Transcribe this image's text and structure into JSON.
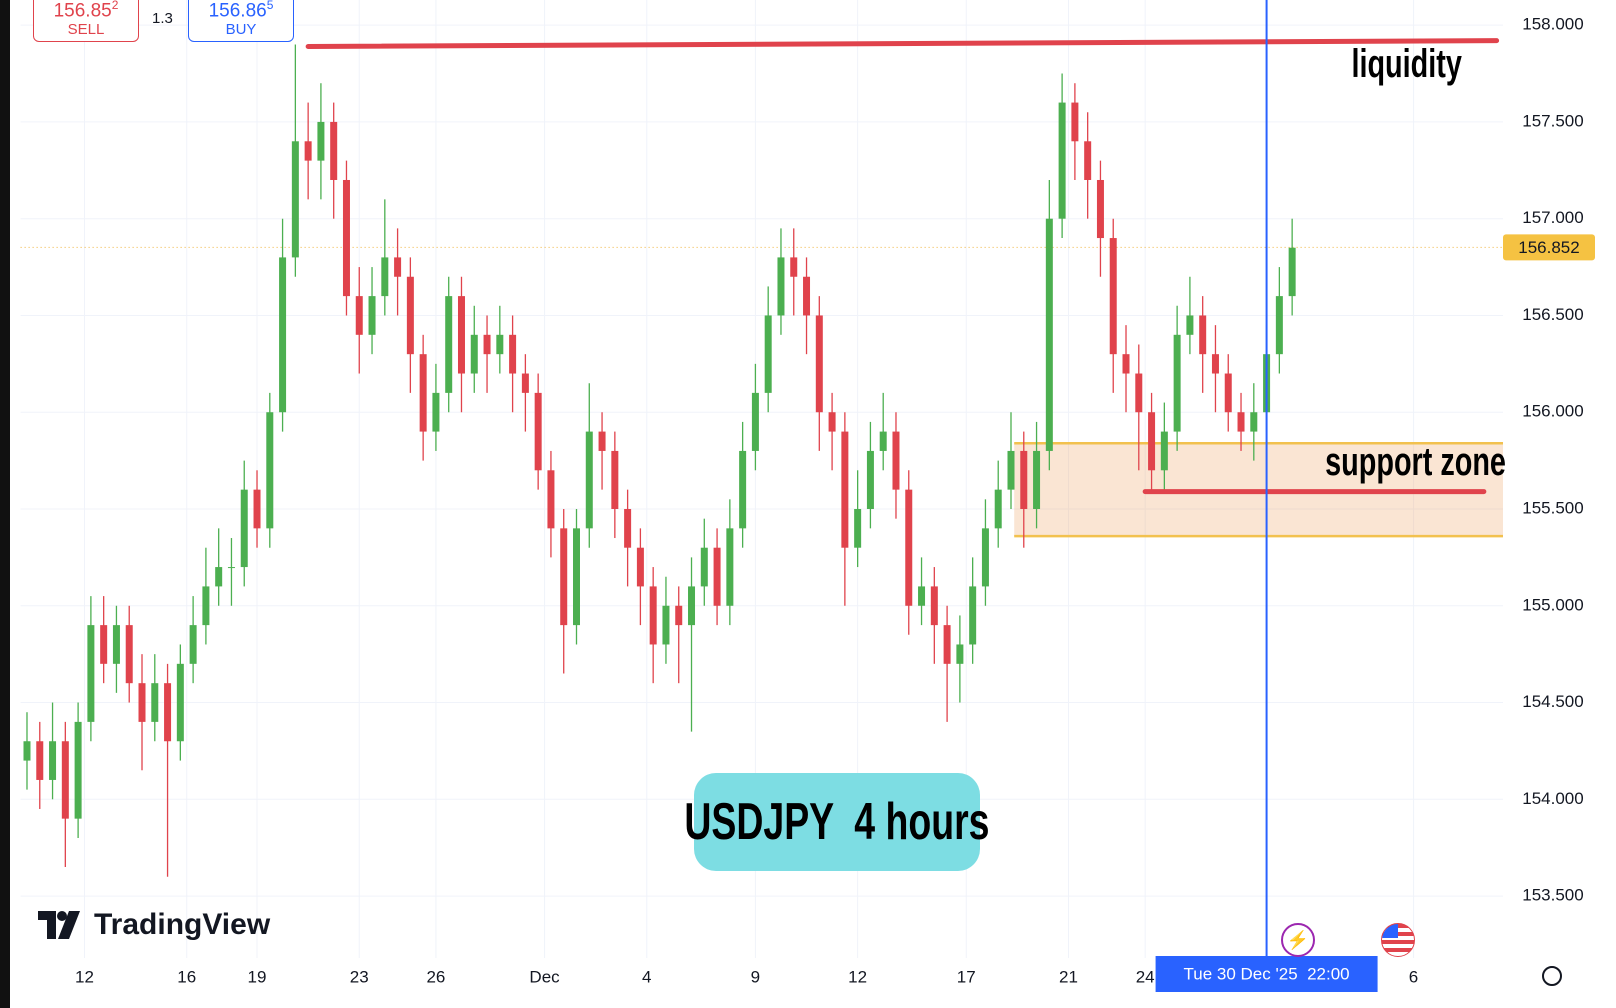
{
  "trade_panel": {
    "sell_price": "156.85",
    "sell_pip": "2",
    "sell_label": "SELL",
    "spread": "1.3",
    "buy_price": "156.86",
    "buy_pip": "5",
    "buy_label": "BUY"
  },
  "brand": "TradingView",
  "chart_data": {
    "type": "candlestick",
    "title": "USDJPY  4 hours",
    "up_color": "#4caf50",
    "down_color": "#e0434c",
    "grid": true,
    "x": [
      1,
      3,
      5,
      7,
      9,
      11,
      13,
      15,
      17,
      19,
      21,
      23,
      25,
      27,
      29,
      31,
      33,
      35,
      37,
      39,
      41,
      43,
      45,
      47,
      49,
      51,
      53,
      55,
      57,
      59,
      61,
      63,
      65,
      67,
      69,
      71,
      73,
      75,
      77,
      79,
      81,
      83,
      85,
      87,
      89,
      91,
      93,
      95,
      97,
      99,
      101,
      103,
      105,
      107,
      109,
      111,
      113,
      115,
      117,
      119,
      121,
      123,
      125,
      127,
      129,
      131,
      133,
      135,
      137,
      139,
      141,
      143,
      145,
      147,
      149,
      151,
      153,
      155,
      157,
      159,
      161,
      163,
      165,
      167,
      169,
      171,
      173,
      175,
      177,
      179,
      181,
      183,
      185,
      187,
      189,
      191,
      193,
      195,
      197,
      199
    ],
    "ohlc": [
      [
        154.2,
        154.45,
        154.05,
        154.3
      ],
      [
        154.3,
        154.4,
        153.95,
        154.1
      ],
      [
        154.1,
        154.5,
        154.0,
        154.3
      ],
      [
        154.3,
        154.4,
        153.65,
        153.9
      ],
      [
        153.9,
        154.5,
        153.8,
        154.4
      ],
      [
        154.4,
        155.05,
        154.3,
        154.9
      ],
      [
        154.9,
        155.05,
        154.6,
        154.7
      ],
      [
        154.7,
        155.0,
        154.55,
        154.9
      ],
      [
        154.9,
        155.0,
        154.5,
        154.6
      ],
      [
        154.6,
        154.75,
        154.15,
        154.4
      ],
      [
        154.4,
        154.75,
        154.3,
        154.6
      ],
      [
        154.6,
        154.7,
        153.6,
        154.3
      ],
      [
        154.3,
        154.8,
        154.2,
        154.7
      ],
      [
        154.7,
        155.05,
        154.6,
        154.9
      ],
      [
        154.9,
        155.3,
        154.8,
        155.1
      ],
      [
        155.1,
        155.4,
        155.0,
        155.2
      ],
      [
        155.2,
        155.35,
        155.0,
        155.2
      ],
      [
        155.2,
        155.75,
        155.1,
        155.6
      ],
      [
        155.6,
        155.7,
        155.3,
        155.4
      ],
      [
        155.4,
        156.1,
        155.3,
        156.0
      ],
      [
        156.0,
        157.0,
        155.9,
        156.8
      ],
      [
        156.8,
        157.9,
        156.7,
        157.4
      ],
      [
        157.4,
        157.6,
        157.1,
        157.3
      ],
      [
        157.3,
        157.7,
        157.1,
        157.5
      ],
      [
        157.5,
        157.6,
        157.0,
        157.2
      ],
      [
        157.2,
        157.3,
        156.5,
        156.6
      ],
      [
        156.6,
        156.75,
        156.2,
        156.4
      ],
      [
        156.4,
        156.75,
        156.3,
        156.6
      ],
      [
        156.6,
        157.1,
        156.5,
        156.8
      ],
      [
        156.8,
        156.95,
        156.5,
        156.7
      ],
      [
        156.7,
        156.8,
        156.1,
        156.3
      ],
      [
        156.3,
        156.4,
        155.75,
        155.9
      ],
      [
        155.9,
        156.25,
        155.8,
        156.1
      ],
      [
        156.1,
        156.7,
        156.0,
        156.6
      ],
      [
        156.6,
        156.7,
        156.0,
        156.2
      ],
      [
        156.2,
        156.55,
        156.1,
        156.4
      ],
      [
        156.4,
        156.5,
        156.1,
        156.3
      ],
      [
        156.3,
        156.55,
        156.2,
        156.4
      ],
      [
        156.4,
        156.5,
        156.0,
        156.2
      ],
      [
        156.2,
        156.3,
        155.9,
        156.1
      ],
      [
        156.1,
        156.2,
        155.6,
        155.7
      ],
      [
        155.7,
        155.8,
        155.25,
        155.4
      ],
      [
        155.4,
        155.5,
        154.65,
        154.9
      ],
      [
        154.9,
        155.5,
        154.8,
        155.4
      ],
      [
        155.4,
        156.15,
        155.3,
        155.9
      ],
      [
        155.9,
        156.0,
        155.6,
        155.8
      ],
      [
        155.8,
        155.9,
        155.35,
        155.5
      ],
      [
        155.5,
        155.6,
        155.1,
        155.3
      ],
      [
        155.3,
        155.4,
        154.9,
        155.1
      ],
      [
        155.1,
        155.2,
        154.6,
        154.8
      ],
      [
        154.8,
        155.15,
        154.7,
        155.0
      ],
      [
        155.0,
        155.1,
        154.6,
        154.9
      ],
      [
        154.9,
        155.25,
        154.35,
        155.1
      ],
      [
        155.1,
        155.45,
        155.0,
        155.3
      ],
      [
        155.3,
        155.4,
        154.9,
        155.0
      ],
      [
        155.0,
        155.55,
        154.9,
        155.4
      ],
      [
        155.4,
        155.95,
        155.3,
        155.8
      ],
      [
        155.8,
        156.25,
        155.7,
        156.1
      ],
      [
        156.1,
        156.65,
        156.0,
        156.5
      ],
      [
        156.5,
        156.95,
        156.4,
        156.8
      ],
      [
        156.8,
        156.95,
        156.5,
        156.7
      ],
      [
        156.7,
        156.8,
        156.3,
        156.5
      ],
      [
        156.5,
        156.6,
        155.8,
        156.0
      ],
      [
        156.0,
        156.1,
        155.7,
        155.9
      ],
      [
        155.9,
        156.0,
        155.0,
        155.3
      ],
      [
        155.3,
        155.7,
        155.2,
        155.5
      ],
      [
        155.5,
        155.95,
        155.4,
        155.8
      ],
      [
        155.8,
        156.1,
        155.7,
        155.9
      ],
      [
        155.9,
        156.0,
        155.45,
        155.6
      ],
      [
        155.6,
        155.7,
        154.85,
        155.0
      ],
      [
        155.0,
        155.25,
        154.9,
        155.1
      ],
      [
        155.1,
        155.2,
        154.7,
        154.9
      ],
      [
        154.9,
        155.0,
        154.4,
        154.7
      ],
      [
        154.7,
        154.95,
        154.5,
        154.8
      ],
      [
        154.8,
        155.25,
        154.7,
        155.1
      ],
      [
        155.1,
        155.55,
        155.0,
        155.4
      ],
      [
        155.4,
        155.75,
        155.3,
        155.6
      ],
      [
        155.6,
        156.0,
        155.5,
        155.8
      ],
      [
        155.8,
        155.9,
        155.3,
        155.5
      ],
      [
        155.5,
        155.95,
        155.4,
        155.8
      ],
      [
        155.8,
        157.2,
        155.7,
        157.0
      ],
      [
        157.0,
        157.75,
        156.9,
        157.6
      ],
      [
        157.6,
        157.7,
        157.2,
        157.4
      ],
      [
        157.4,
        157.55,
        157.0,
        157.2
      ],
      [
        157.2,
        157.3,
        156.7,
        156.9
      ],
      [
        156.9,
        157.0,
        156.1,
        156.3
      ],
      [
        156.3,
        156.45,
        156.0,
        156.2
      ],
      [
        156.2,
        156.35,
        155.7,
        156.0
      ],
      [
        156.0,
        156.1,
        155.6,
        155.7
      ],
      [
        155.7,
        156.05,
        155.6,
        155.9
      ],
      [
        155.9,
        156.55,
        155.8,
        156.4
      ],
      [
        156.4,
        156.7,
        156.3,
        156.5
      ],
      [
        156.5,
        156.6,
        156.1,
        156.3
      ],
      [
        156.3,
        156.45,
        156.0,
        156.2
      ],
      [
        156.2,
        156.3,
        155.9,
        156.0
      ],
      [
        156.0,
        156.1,
        155.8,
        155.9
      ],
      [
        155.9,
        156.15,
        155.75,
        156.0
      ],
      [
        156.0,
        156.45,
        155.9,
        156.3
      ],
      [
        156.3,
        156.75,
        156.2,
        156.6
      ],
      [
        156.6,
        157.0,
        156.5,
        156.85
      ]
    ],
    "xlim": [
      0,
      232
    ],
    "ylim": [
      153.18,
      158.13
    ],
    "xticks": [
      {
        "value": 10,
        "label": "12"
      },
      {
        "value": 26,
        "label": "16"
      },
      {
        "value": 37,
        "label": "19"
      },
      {
        "value": 53,
        "label": "23"
      },
      {
        "value": 65,
        "label": "26"
      },
      {
        "value": 82,
        "label": "Dec"
      },
      {
        "value": 98,
        "label": "4"
      },
      {
        "value": 115,
        "label": "9"
      },
      {
        "value": 131,
        "label": "12"
      },
      {
        "value": 148,
        "label": "17"
      },
      {
        "value": 164,
        "label": "21"
      },
      {
        "value": 176,
        "label": "24"
      },
      {
        "value": 218,
        "label": "6"
      }
    ],
    "yticks": [
      {
        "value": 153.5,
        "label": "153.500"
      },
      {
        "value": 154,
        "label": "154.000"
      },
      {
        "value": 154.5,
        "label": "154.500"
      },
      {
        "value": 155,
        "label": "155.000"
      },
      {
        "value": 155.5,
        "label": "155.500"
      },
      {
        "value": 156,
        "label": "156.000"
      },
      {
        "value": 156.5,
        "label": "156.500"
      },
      {
        "value": 157,
        "label": "157.000"
      },
      {
        "value": 157.5,
        "label": "157.500"
      },
      {
        "value": 158,
        "label": "158.000"
      }
    ],
    "last_price": 156.852,
    "crosshair": {
      "x": 195,
      "label": "Tue 30 Dec '25  22:00"
    },
    "liquidity": {
      "text": "liquidity",
      "x": [
        45,
        231
      ],
      "y": [
        157.89,
        157.92
      ]
    },
    "support_zone": {
      "text": "support zone",
      "x": [
        155.5,
        232
      ],
      "y": [
        155.36,
        155.84
      ]
    },
    "support_line": {
      "x": [
        176,
        229
      ],
      "y": [
        155.59,
        155.59
      ]
    }
  }
}
